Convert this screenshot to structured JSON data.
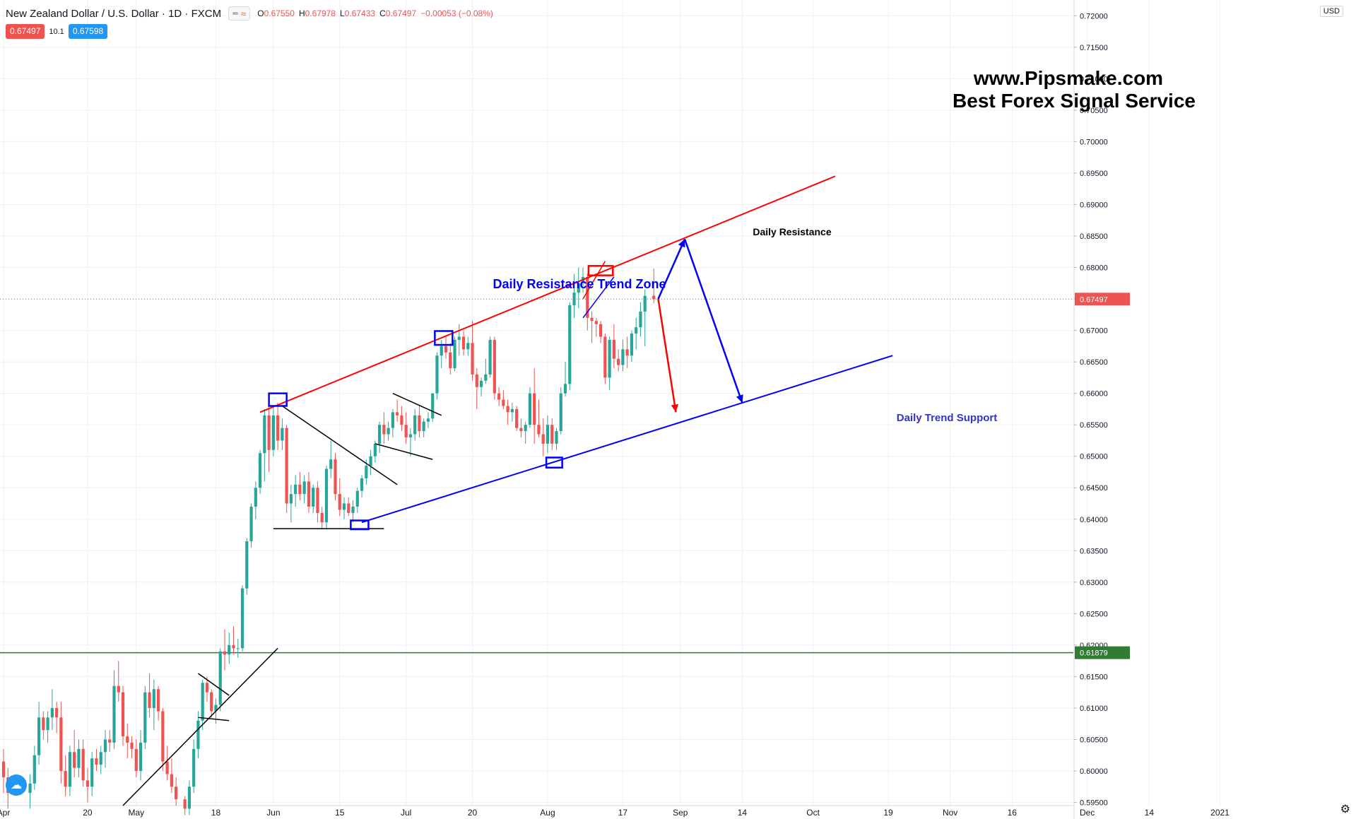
{
  "header": {
    "title": "New Zealand Dollar / U.S. Dollar · 1D · FXCM",
    "ohlc": {
      "o_label": "O",
      "o": "0.67550",
      "h_label": "H",
      "h": "0.67978",
      "l_label": "L",
      "l": "0.67433",
      "c_label": "C",
      "c": "0.67497",
      "change": "−0.00053 (−0.08%)"
    }
  },
  "badges": {
    "bid": "0.67497",
    "spread": "10.1",
    "ask": "0.67598"
  },
  "currency": "USD",
  "colors": {
    "up": "#26a69a",
    "down": "#ef5350",
    "grid": "#eef0f3",
    "resistance": "#ff0000",
    "support": "#0000ff",
    "hline": "#2e7d32",
    "price_line": "#ef5350"
  },
  "chart_data": {
    "type": "candlestick",
    "title": "New Zealand Dollar / U.S. Dollar · 1D · FXCM",
    "ylim": [
      0.5945,
      0.7225
    ],
    "ytick_values": [
      0.595,
      0.6,
      0.605,
      0.61,
      0.615,
      0.62,
      0.625,
      0.63,
      0.635,
      0.64,
      0.645,
      0.65,
      0.655,
      0.66,
      0.665,
      0.67,
      0.675,
      0.68,
      0.685,
      0.69,
      0.695,
      0.7,
      0.705,
      0.71,
      0.715,
      0.72
    ],
    "ytick_labels": [
      "0.59500",
      "0.60000",
      "0.60500",
      "0.61000",
      "0.61500",
      "0.62000",
      "0.62500",
      "0.63000",
      "0.63500",
      "0.64000",
      "0.64500",
      "0.65000",
      "0.65500",
      "0.66000",
      "0.66500",
      "0.67000",
      "0.67500",
      "0.68000",
      "0.68500",
      "0.69000",
      "0.69500",
      "0.70000",
      "0.70500",
      "0.71000",
      "0.71500",
      "0.72000"
    ],
    "xtick_days": [
      0,
      19,
      30,
      48,
      61,
      76,
      91,
      106,
      123,
      140,
      153,
      167,
      183,
      200,
      214,
      228,
      245,
      259,
      275
    ],
    "xtick_labels": [
      "Apr",
      "20",
      "May",
      "18",
      "Jun",
      "15",
      "Jul",
      "20",
      "Aug",
      "17",
      "Sep",
      "14",
      "Oct",
      "19",
      "Nov",
      "16",
      "Dec",
      "14",
      "2021"
    ],
    "candles": [
      {
        "d": 0,
        "o": 0.6015,
        "h": 0.6035,
        "l": 0.5965,
        "c": 0.599
      },
      {
        "d": 1,
        "o": 0.599,
        "h": 0.6005,
        "l": 0.594,
        "c": 0.5965
      },
      {
        "d": 6,
        "o": 0.5965,
        "h": 0.5995,
        "l": 0.594,
        "c": 0.598
      },
      {
        "d": 7,
        "o": 0.598,
        "h": 0.604,
        "l": 0.597,
        "c": 0.6025
      },
      {
        "d": 8,
        "o": 0.6025,
        "h": 0.611,
        "l": 0.601,
        "c": 0.6085
      },
      {
        "d": 9,
        "o": 0.6085,
        "h": 0.6095,
        "l": 0.605,
        "c": 0.6065
      },
      {
        "d": 10,
        "o": 0.6065,
        "h": 0.6095,
        "l": 0.6045,
        "c": 0.6085
      },
      {
        "d": 11,
        "o": 0.6085,
        "h": 0.613,
        "l": 0.6065,
        "c": 0.61
      },
      {
        "d": 12,
        "o": 0.61,
        "h": 0.611,
        "l": 0.606,
        "c": 0.6085
      },
      {
        "d": 13,
        "o": 0.6085,
        "h": 0.611,
        "l": 0.598,
        "c": 0.6
      },
      {
        "d": 14,
        "o": 0.6,
        "h": 0.6025,
        "l": 0.596,
        "c": 0.5975
      },
      {
        "d": 15,
        "o": 0.5975,
        "h": 0.604,
        "l": 0.596,
        "c": 0.603
      },
      {
        "d": 16,
        "o": 0.603,
        "h": 0.6065,
        "l": 0.599,
        "c": 0.6005
      },
      {
        "d": 17,
        "o": 0.6005,
        "h": 0.605,
        "l": 0.599,
        "c": 0.6035
      },
      {
        "d": 18,
        "o": 0.6035,
        "h": 0.605,
        "l": 0.5975,
        "c": 0.5985
      },
      {
        "d": 19,
        "o": 0.5985,
        "h": 0.6005,
        "l": 0.595,
        "c": 0.5975
      },
      {
        "d": 20,
        "o": 0.5975,
        "h": 0.603,
        "l": 0.596,
        "c": 0.602
      },
      {
        "d": 21,
        "o": 0.602,
        "h": 0.6035,
        "l": 0.6,
        "c": 0.601
      },
      {
        "d": 22,
        "o": 0.601,
        "h": 0.604,
        "l": 0.5995,
        "c": 0.603
      },
      {
        "d": 23,
        "o": 0.603,
        "h": 0.6065,
        "l": 0.6005,
        "c": 0.605
      },
      {
        "d": 24,
        "o": 0.605,
        "h": 0.6065,
        "l": 0.603,
        "c": 0.6045
      },
      {
        "d": 25,
        "o": 0.6045,
        "h": 0.616,
        "l": 0.6035,
        "c": 0.6135
      },
      {
        "d": 26,
        "o": 0.6135,
        "h": 0.6175,
        "l": 0.611,
        "c": 0.6125
      },
      {
        "d": 27,
        "o": 0.6125,
        "h": 0.6135,
        "l": 0.604,
        "c": 0.6055
      },
      {
        "d": 28,
        "o": 0.6055,
        "h": 0.6075,
        "l": 0.602,
        "c": 0.6045
      },
      {
        "d": 29,
        "o": 0.6045,
        "h": 0.6055,
        "l": 0.602,
        "c": 0.6035
      },
      {
        "d": 30,
        "o": 0.6035,
        "h": 0.605,
        "l": 0.599,
        "c": 0.6
      },
      {
        "d": 31,
        "o": 0.6,
        "h": 0.6065,
        "l": 0.5985,
        "c": 0.6045
      },
      {
        "d": 32,
        "o": 0.6045,
        "h": 0.6135,
        "l": 0.6035,
        "c": 0.6125
      },
      {
        "d": 33,
        "o": 0.6125,
        "h": 0.6155,
        "l": 0.6085,
        "c": 0.61
      },
      {
        "d": 34,
        "o": 0.61,
        "h": 0.6145,
        "l": 0.6065,
        "c": 0.613
      },
      {
        "d": 35,
        "o": 0.613,
        "h": 0.6135,
        "l": 0.608,
        "c": 0.6095
      },
      {
        "d": 36,
        "o": 0.6095,
        "h": 0.61,
        "l": 0.6,
        "c": 0.6015
      },
      {
        "d": 37,
        "o": 0.6015,
        "h": 0.604,
        "l": 0.5985,
        "c": 0.5995
      },
      {
        "d": 38,
        "o": 0.5995,
        "h": 0.602,
        "l": 0.5965,
        "c": 0.5975
      },
      {
        "d": 39,
        "o": 0.5975,
        "h": 0.599,
        "l": 0.5945,
        "c": 0.5955
      },
      {
        "d": 41,
        "o": 0.5955,
        "h": 0.596,
        "l": 0.593,
        "c": 0.594
      },
      {
        "d": 42,
        "o": 0.594,
        "h": 0.5985,
        "l": 0.593,
        "c": 0.5975
      },
      {
        "d": 43,
        "o": 0.5975,
        "h": 0.605,
        "l": 0.5965,
        "c": 0.6035
      },
      {
        "d": 44,
        "o": 0.6035,
        "h": 0.6095,
        "l": 0.602,
        "c": 0.608
      },
      {
        "d": 45,
        "o": 0.608,
        "h": 0.6145,
        "l": 0.6065,
        "c": 0.614
      },
      {
        "d": 46,
        "o": 0.614,
        "h": 0.615,
        "l": 0.611,
        "c": 0.6125
      },
      {
        "d": 47,
        "o": 0.6125,
        "h": 0.613,
        "l": 0.6085,
        "c": 0.6095
      },
      {
        "d": 48,
        "o": 0.6095,
        "h": 0.6115,
        "l": 0.6075,
        "c": 0.6105
      },
      {
        "d": 49,
        "o": 0.6105,
        "h": 0.6195,
        "l": 0.6095,
        "c": 0.619
      },
      {
        "d": 50,
        "o": 0.619,
        "h": 0.6225,
        "l": 0.616,
        "c": 0.6185
      },
      {
        "d": 51,
        "o": 0.6185,
        "h": 0.622,
        "l": 0.617,
        "c": 0.62
      },
      {
        "d": 52,
        "o": 0.62,
        "h": 0.623,
        "l": 0.6185,
        "c": 0.6195
      },
      {
        "d": 53,
        "o": 0.6195,
        "h": 0.621,
        "l": 0.618,
        "c": 0.6195
      },
      {
        "d": 54,
        "o": 0.6195,
        "h": 0.6295,
        "l": 0.619,
        "c": 0.629
      },
      {
        "d": 55,
        "o": 0.629,
        "h": 0.637,
        "l": 0.628,
        "c": 0.6365
      },
      {
        "d": 56,
        "o": 0.6365,
        "h": 0.6425,
        "l": 0.6355,
        "c": 0.642
      },
      {
        "d": 57,
        "o": 0.642,
        "h": 0.646,
        "l": 0.64,
        "c": 0.645
      },
      {
        "d": 58,
        "o": 0.645,
        "h": 0.651,
        "l": 0.644,
        "c": 0.6505
      },
      {
        "d": 59,
        "o": 0.6505,
        "h": 0.6575,
        "l": 0.646,
        "c": 0.6565
      },
      {
        "d": 60,
        "o": 0.6565,
        "h": 0.6585,
        "l": 0.6475,
        "c": 0.651
      },
      {
        "d": 61,
        "o": 0.651,
        "h": 0.658,
        "l": 0.65,
        "c": 0.6565
      },
      {
        "d": 62,
        "o": 0.6565,
        "h": 0.6585,
        "l": 0.651,
        "c": 0.6525
      },
      {
        "d": 63,
        "o": 0.6525,
        "h": 0.656,
        "l": 0.651,
        "c": 0.6545
      },
      {
        "d": 64,
        "o": 0.6545,
        "h": 0.655,
        "l": 0.641,
        "c": 0.6425
      },
      {
        "d": 65,
        "o": 0.6425,
        "h": 0.6455,
        "l": 0.6395,
        "c": 0.644
      },
      {
        "d": 66,
        "o": 0.644,
        "h": 0.647,
        "l": 0.642,
        "c": 0.6455
      },
      {
        "d": 67,
        "o": 0.6455,
        "h": 0.6475,
        "l": 0.643,
        "c": 0.644
      },
      {
        "d": 68,
        "o": 0.644,
        "h": 0.647,
        "l": 0.6425,
        "c": 0.646
      },
      {
        "d": 69,
        "o": 0.646,
        "h": 0.6475,
        "l": 0.641,
        "c": 0.642
      },
      {
        "d": 70,
        "o": 0.642,
        "h": 0.6455,
        "l": 0.641,
        "c": 0.645
      },
      {
        "d": 71,
        "o": 0.645,
        "h": 0.646,
        "l": 0.6395,
        "c": 0.641
      },
      {
        "d": 72,
        "o": 0.641,
        "h": 0.642,
        "l": 0.6385,
        "c": 0.6395
      },
      {
        "d": 73,
        "o": 0.6395,
        "h": 0.6485,
        "l": 0.6385,
        "c": 0.648
      },
      {
        "d": 74,
        "o": 0.648,
        "h": 0.6525,
        "l": 0.6465,
        "c": 0.6495
      },
      {
        "d": 75,
        "o": 0.6495,
        "h": 0.6505,
        "l": 0.643,
        "c": 0.644
      },
      {
        "d": 76,
        "o": 0.644,
        "h": 0.6465,
        "l": 0.6405,
        "c": 0.6415
      },
      {
        "d": 77,
        "o": 0.6415,
        "h": 0.6435,
        "l": 0.64,
        "c": 0.6425
      },
      {
        "d": 78,
        "o": 0.6425,
        "h": 0.6435,
        "l": 0.6405,
        "c": 0.641
      },
      {
        "d": 79,
        "o": 0.641,
        "h": 0.643,
        "l": 0.6395,
        "c": 0.642
      },
      {
        "d": 80,
        "o": 0.642,
        "h": 0.645,
        "l": 0.641,
        "c": 0.6445
      },
      {
        "d": 81,
        "o": 0.6445,
        "h": 0.647,
        "l": 0.6435,
        "c": 0.6465
      },
      {
        "d": 82,
        "o": 0.6465,
        "h": 0.6495,
        "l": 0.6455,
        "c": 0.6485
      },
      {
        "d": 83,
        "o": 0.6485,
        "h": 0.651,
        "l": 0.647,
        "c": 0.65
      },
      {
        "d": 84,
        "o": 0.65,
        "h": 0.6525,
        "l": 0.649,
        "c": 0.652
      },
      {
        "d": 85,
        "o": 0.652,
        "h": 0.6555,
        "l": 0.6505,
        "c": 0.655
      },
      {
        "d": 86,
        "o": 0.655,
        "h": 0.657,
        "l": 0.652,
        "c": 0.6535
      },
      {
        "d": 87,
        "o": 0.6535,
        "h": 0.6555,
        "l": 0.6525,
        "c": 0.6545
      },
      {
        "d": 88,
        "o": 0.6545,
        "h": 0.6575,
        "l": 0.653,
        "c": 0.657
      },
      {
        "d": 89,
        "o": 0.657,
        "h": 0.659,
        "l": 0.6555,
        "c": 0.6565
      },
      {
        "d": 90,
        "o": 0.6565,
        "h": 0.658,
        "l": 0.654,
        "c": 0.655
      },
      {
        "d": 91,
        "o": 0.655,
        "h": 0.657,
        "l": 0.652,
        "c": 0.653
      },
      {
        "d": 92,
        "o": 0.653,
        "h": 0.6545,
        "l": 0.65,
        "c": 0.6535
      },
      {
        "d": 93,
        "o": 0.6535,
        "h": 0.6575,
        "l": 0.6525,
        "c": 0.6565
      },
      {
        "d": 94,
        "o": 0.6565,
        "h": 0.658,
        "l": 0.653,
        "c": 0.654
      },
      {
        "d": 95,
        "o": 0.654,
        "h": 0.656,
        "l": 0.653,
        "c": 0.6555
      },
      {
        "d": 96,
        "o": 0.6555,
        "h": 0.657,
        "l": 0.6545,
        "c": 0.656
      },
      {
        "d": 97,
        "o": 0.656,
        "h": 0.66,
        "l": 0.6555,
        "c": 0.66
      },
      {
        "d": 98,
        "o": 0.66,
        "h": 0.6665,
        "l": 0.659,
        "c": 0.666
      },
      {
        "d": 99,
        "o": 0.666,
        "h": 0.6685,
        "l": 0.664,
        "c": 0.6675
      },
      {
        "d": 100,
        "o": 0.6675,
        "h": 0.669,
        "l": 0.6655,
        "c": 0.6665
      },
      {
        "d": 101,
        "o": 0.6665,
        "h": 0.668,
        "l": 0.663,
        "c": 0.664
      },
      {
        "d": 102,
        "o": 0.664,
        "h": 0.669,
        "l": 0.6635,
        "c": 0.6685
      },
      {
        "d": 103,
        "o": 0.6685,
        "h": 0.671,
        "l": 0.666,
        "c": 0.669
      },
      {
        "d": 104,
        "o": 0.669,
        "h": 0.67,
        "l": 0.666,
        "c": 0.667
      },
      {
        "d": 105,
        "o": 0.667,
        "h": 0.669,
        "l": 0.666,
        "c": 0.668
      },
      {
        "d": 106,
        "o": 0.668,
        "h": 0.6715,
        "l": 0.662,
        "c": 0.663
      },
      {
        "d": 107,
        "o": 0.663,
        "h": 0.664,
        "l": 0.6575,
        "c": 0.661
      },
      {
        "d": 108,
        "o": 0.661,
        "h": 0.6625,
        "l": 0.6595,
        "c": 0.662
      },
      {
        "d": 109,
        "o": 0.662,
        "h": 0.6655,
        "l": 0.6615,
        "c": 0.663
      },
      {
        "d": 110,
        "o": 0.663,
        "h": 0.669,
        "l": 0.6625,
        "c": 0.6685
      },
      {
        "d": 111,
        "o": 0.6685,
        "h": 0.669,
        "l": 0.659,
        "c": 0.66
      },
      {
        "d": 112,
        "o": 0.66,
        "h": 0.661,
        "l": 0.658,
        "c": 0.659
      },
      {
        "d": 113,
        "o": 0.659,
        "h": 0.6605,
        "l": 0.6575,
        "c": 0.658
      },
      {
        "d": 114,
        "o": 0.658,
        "h": 0.659,
        "l": 0.655,
        "c": 0.657
      },
      {
        "d": 115,
        "o": 0.657,
        "h": 0.6585,
        "l": 0.6555,
        "c": 0.6575
      },
      {
        "d": 116,
        "o": 0.6575,
        "h": 0.658,
        "l": 0.654,
        "c": 0.6545
      },
      {
        "d": 117,
        "o": 0.6545,
        "h": 0.656,
        "l": 0.653,
        "c": 0.654
      },
      {
        "d": 118,
        "o": 0.654,
        "h": 0.6555,
        "l": 0.652,
        "c": 0.655
      },
      {
        "d": 119,
        "o": 0.655,
        "h": 0.661,
        "l": 0.6545,
        "c": 0.66
      },
      {
        "d": 120,
        "o": 0.66,
        "h": 0.664,
        "l": 0.652,
        "c": 0.655
      },
      {
        "d": 121,
        "o": 0.655,
        "h": 0.659,
        "l": 0.653,
        "c": 0.6535
      },
      {
        "d": 122,
        "o": 0.6535,
        "h": 0.656,
        "l": 0.65,
        "c": 0.652
      },
      {
        "d": 123,
        "o": 0.652,
        "h": 0.6565,
        "l": 0.6505,
        "c": 0.655
      },
      {
        "d": 124,
        "o": 0.655,
        "h": 0.656,
        "l": 0.651,
        "c": 0.652
      },
      {
        "d": 125,
        "o": 0.652,
        "h": 0.6545,
        "l": 0.651,
        "c": 0.654
      },
      {
        "d": 126,
        "o": 0.654,
        "h": 0.661,
        "l": 0.6535,
        "c": 0.66
      },
      {
        "d": 127,
        "o": 0.66,
        "h": 0.665,
        "l": 0.6595,
        "c": 0.6615
      },
      {
        "d": 128,
        "o": 0.6615,
        "h": 0.6745,
        "l": 0.6605,
        "c": 0.674
      },
      {
        "d": 129,
        "o": 0.674,
        "h": 0.679,
        "l": 0.672,
        "c": 0.676
      },
      {
        "d": 130,
        "o": 0.676,
        "h": 0.68,
        "l": 0.6735,
        "c": 0.6775
      },
      {
        "d": 131,
        "o": 0.6775,
        "h": 0.68,
        "l": 0.676,
        "c": 0.6785
      },
      {
        "d": 132,
        "o": 0.6785,
        "h": 0.679,
        "l": 0.67,
        "c": 0.672
      },
      {
        "d": 133,
        "o": 0.672,
        "h": 0.673,
        "l": 0.668,
        "c": 0.6715
      },
      {
        "d": 134,
        "o": 0.6715,
        "h": 0.672,
        "l": 0.669,
        "c": 0.671
      },
      {
        "d": 135,
        "o": 0.671,
        "h": 0.6715,
        "l": 0.668,
        "c": 0.669
      },
      {
        "d": 136,
        "o": 0.669,
        "h": 0.6695,
        "l": 0.6615,
        "c": 0.6625
      },
      {
        "d": 137,
        "o": 0.6625,
        "h": 0.669,
        "l": 0.6605,
        "c": 0.6685
      },
      {
        "d": 138,
        "o": 0.6685,
        "h": 0.671,
        "l": 0.664,
        "c": 0.6655
      },
      {
        "d": 139,
        "o": 0.6655,
        "h": 0.667,
        "l": 0.6635,
        "c": 0.6645
      },
      {
        "d": 140,
        "o": 0.6645,
        "h": 0.6685,
        "l": 0.6635,
        "c": 0.667
      },
      {
        "d": 141,
        "o": 0.667,
        "h": 0.669,
        "l": 0.664,
        "c": 0.666
      },
      {
        "d": 142,
        "o": 0.666,
        "h": 0.67,
        "l": 0.665,
        "c": 0.6695
      },
      {
        "d": 143,
        "o": 0.6695,
        "h": 0.672,
        "l": 0.667,
        "c": 0.6705
      },
      {
        "d": 144,
        "o": 0.6705,
        "h": 0.6745,
        "l": 0.669,
        "c": 0.673
      },
      {
        "d": 145,
        "o": 0.673,
        "h": 0.6765,
        "l": 0.6675,
        "c": 0.6755
      },
      {
        "d": 147,
        "o": 0.6755,
        "h": 0.6798,
        "l": 0.6743,
        "c": 0.675
      }
    ]
  },
  "annotations": {
    "watermark_line1": "www.Pipsmake.com",
    "watermark_line2": "Best Forex Signal Service",
    "resistance_zone_label": "Daily Resistance Trend Zone",
    "daily_resistance_label": "Daily Resistance",
    "support_label": "Daily Trend Support",
    "horizontal_level_value": 0.61879,
    "horizontal_level_label": "0.61879",
    "last_price_value": 0.67497,
    "last_price_label": "0.67497"
  }
}
